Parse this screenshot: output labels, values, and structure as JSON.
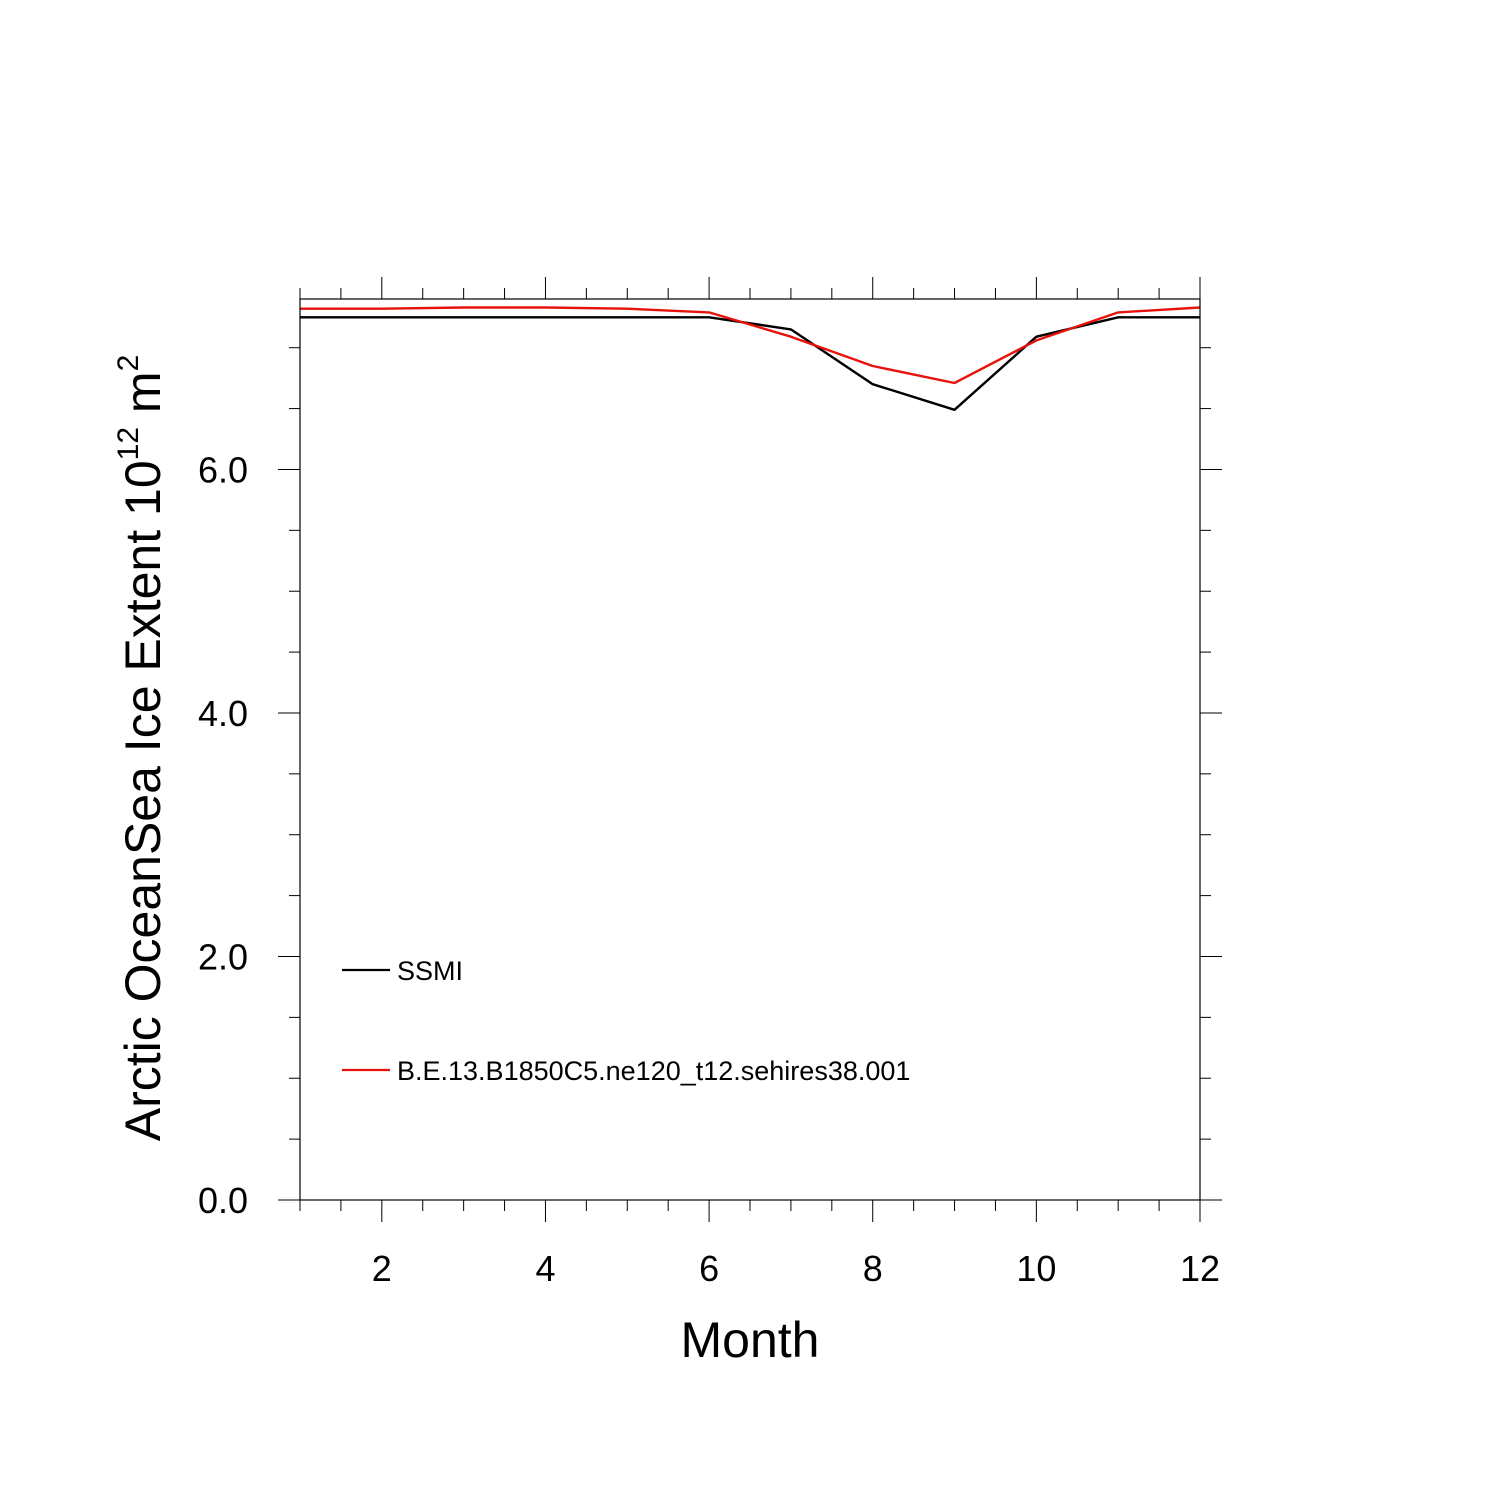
{
  "chart_data": {
    "type": "line",
    "xlabel": "Month",
    "ylabel": "Arctic OceanSea Ice Extent 10",
    "ylabel_sup": "12",
    "ylabel_unit": " m",
    "ylabel_unit_sup": "2",
    "xlim": [
      1,
      12
    ],
    "ylim": [
      0,
      7.4
    ],
    "x_ticks": [
      {
        "value": 2,
        "label": "2"
      },
      {
        "value": 4,
        "label": "4"
      },
      {
        "value": 6,
        "label": "6"
      },
      {
        "value": 8,
        "label": "8"
      },
      {
        "value": 10,
        "label": "10"
      },
      {
        "value": 12,
        "label": "12"
      }
    ],
    "y_ticks": [
      {
        "value": 0,
        "label": "0.0"
      },
      {
        "value": 2,
        "label": "2.0"
      },
      {
        "value": 4,
        "label": "4.0"
      },
      {
        "value": 6,
        "label": "6.0"
      }
    ],
    "x_minor_step": 0.5,
    "y_minor_step": 0.5,
    "grid": false,
    "legend_position": "bottom-left",
    "x": [
      1,
      2,
      3,
      4,
      5,
      6,
      7,
      8,
      9,
      10,
      11,
      12
    ],
    "series": [
      {
        "name": "SSMI",
        "color": "#000000",
        "values": [
          7.25,
          7.25,
          7.25,
          7.25,
          7.25,
          7.25,
          7.15,
          6.7,
          6.49,
          7.09,
          7.25,
          7.25
        ]
      },
      {
        "name": "B.E.13.B1850C5.ne120_t12.sehires38.001",
        "color": "#e8120c",
        "values": [
          7.32,
          7.32,
          7.33,
          7.33,
          7.32,
          7.29,
          7.09,
          6.85,
          6.71,
          7.06,
          7.29,
          7.33
        ]
      }
    ]
  }
}
